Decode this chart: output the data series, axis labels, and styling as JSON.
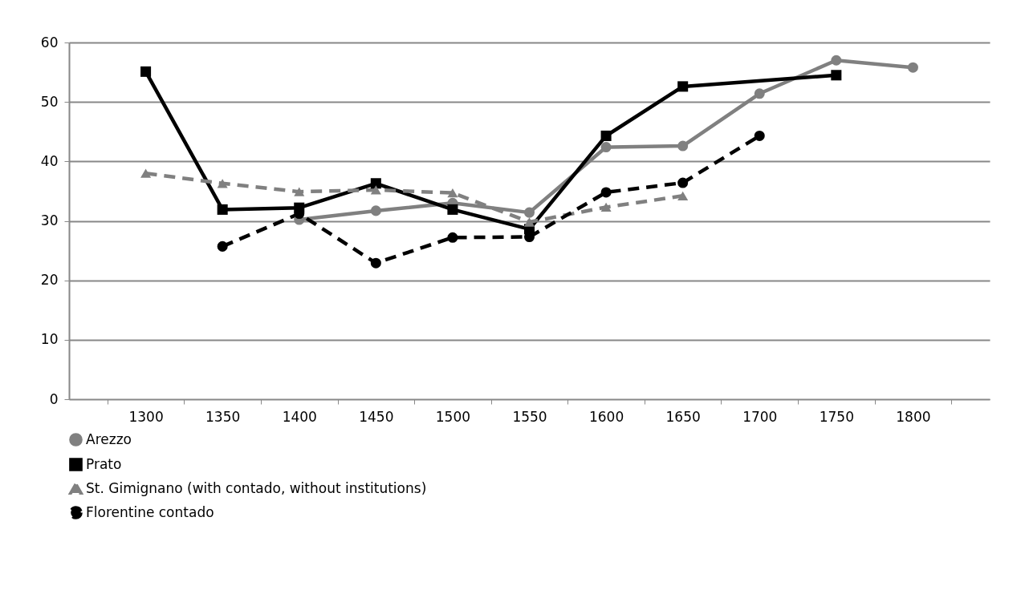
{
  "chart_data": {
    "type": "line",
    "categories": [
      "1300",
      "1350",
      "1400",
      "1450",
      "1500",
      "1550",
      "1600",
      "1650",
      "1700",
      "1750",
      "1800"
    ],
    "ylim": [
      0,
      60
    ],
    "yticks": [
      0,
      10,
      20,
      30,
      40,
      50,
      60
    ],
    "grid": "y",
    "legend": "bottom",
    "series": [
      {
        "name": "Arezzo",
        "color": "#808080",
        "marker": "circle",
        "line_style": "solid",
        "values": [
          null,
          null,
          30.2,
          31.7,
          33.0,
          31.4,
          42.4,
          42.6,
          51.4,
          57.0,
          55.8
        ]
      },
      {
        "name": "Prato",
        "color": "#000000",
        "marker": "square",
        "line_style": "solid",
        "values": [
          55.1,
          31.9,
          32.2,
          36.3,
          31.9,
          28.6,
          44.3,
          52.6,
          null,
          54.5,
          null
        ]
      },
      {
        "name": "St. Gimignano (with contado, without institutions)",
        "color": "#808080",
        "marker": "triangle",
        "line_style": "dashed",
        "values": [
          38.0,
          36.3,
          34.9,
          35.2,
          34.7,
          29.8,
          32.3,
          34.2,
          null,
          null,
          null
        ]
      },
      {
        "name": "Florentine contado",
        "color": "#000000",
        "marker": "circle",
        "line_style": "dashed",
        "values": [
          null,
          25.7,
          31.2,
          22.9,
          27.2,
          27.3,
          34.8,
          36.4,
          44.3,
          null,
          null
        ]
      }
    ]
  }
}
